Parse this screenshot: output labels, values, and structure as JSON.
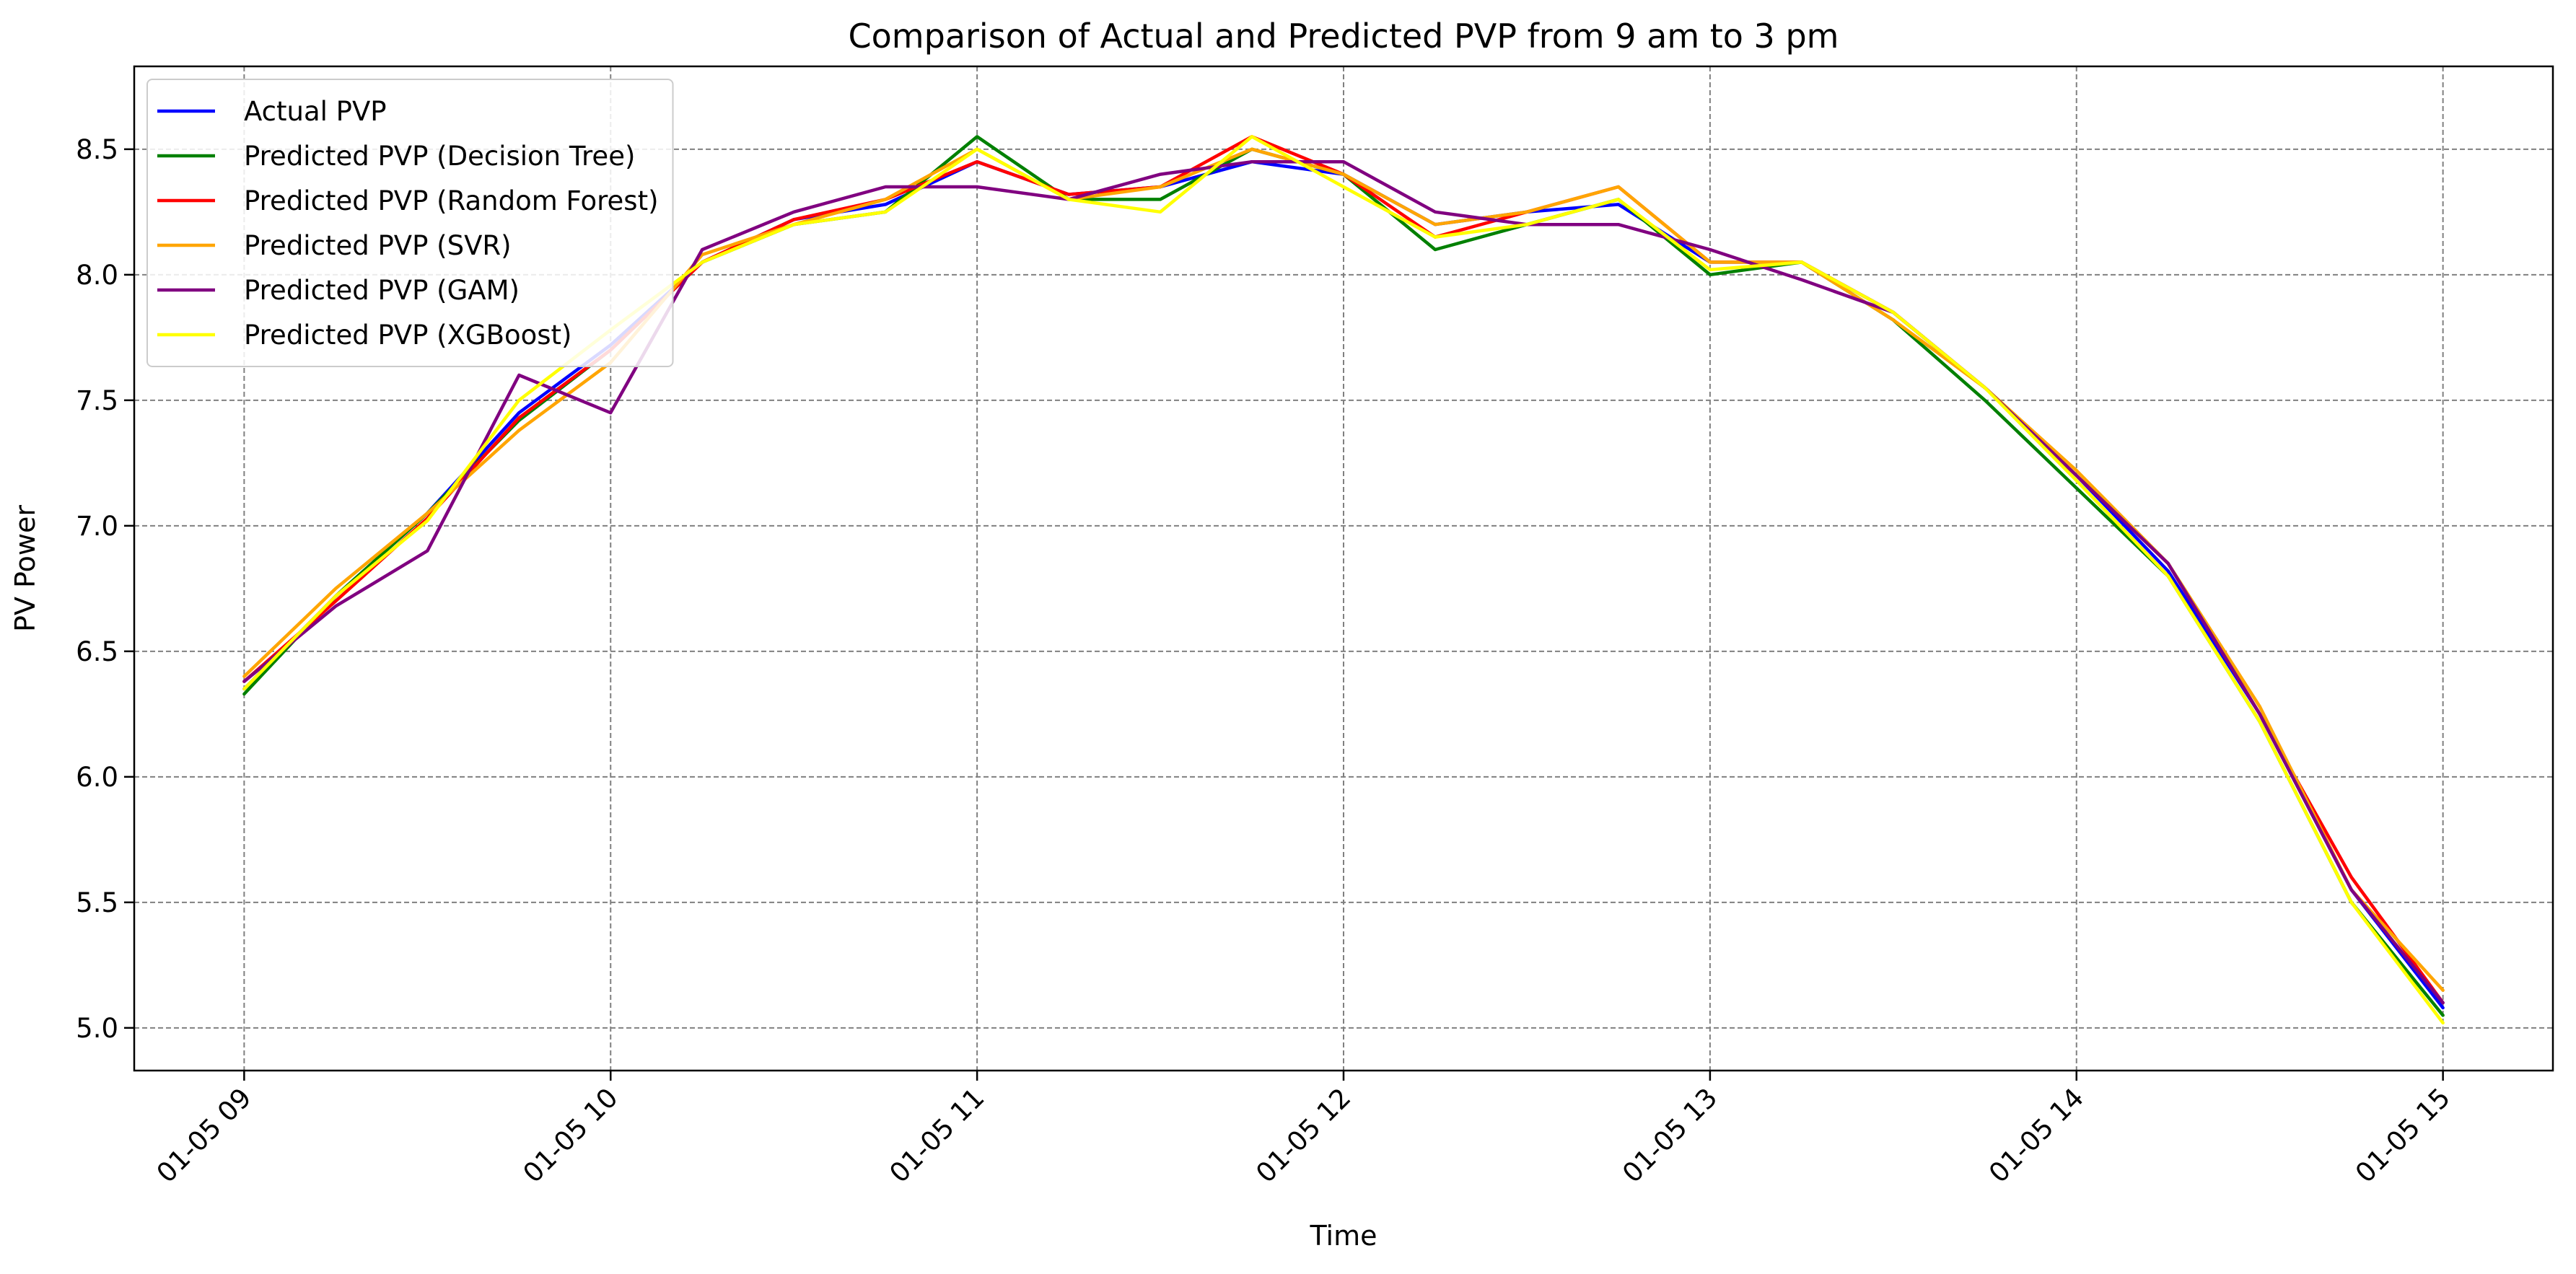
{
  "chart_data": {
    "type": "line",
    "title": "Comparison of Actual and Predicted PVP from 9 am to 3 pm",
    "xlabel": "Time",
    "ylabel": "PV Power",
    "x_ticks": [
      "01-05 09",
      "01-05 10",
      "01-05 11",
      "01-05 12",
      "01-05 13",
      "01-05 14",
      "01-05 15"
    ],
    "y_ticks": [
      "5.0",
      "5.5",
      "6.0",
      "6.5",
      "7.0",
      "7.5",
      "8.0",
      "8.5"
    ],
    "xlim": [
      "01-05 08:42",
      "01-05 15:18"
    ],
    "ylim": [
      4.83,
      8.83
    ],
    "grid": true,
    "legend_position": "upper left",
    "x": [
      "01-05 09:00",
      "01-05 09:15",
      "01-05 09:30",
      "01-05 09:45",
      "01-05 10:00",
      "01-05 10:15",
      "01-05 10:30",
      "01-05 10:45",
      "01-05 11:00",
      "01-05 11:15",
      "01-05 11:30",
      "01-05 11:45",
      "01-05 12:00",
      "01-05 12:15",
      "01-05 12:30",
      "01-05 12:45",
      "01-05 13:00",
      "01-05 13:15",
      "01-05 13:30",
      "01-05 13:45",
      "01-05 14:00",
      "01-05 14:15",
      "01-05 14:30",
      "01-05 14:45",
      "01-05 15:00"
    ],
    "series": [
      {
        "name": "Actual PVP",
        "color": "#0000ff",
        "values": [
          6.35,
          6.72,
          7.05,
          7.45,
          7.72,
          8.05,
          8.22,
          8.28,
          8.45,
          8.32,
          8.35,
          8.45,
          8.4,
          8.2,
          8.25,
          8.28,
          8.05,
          8.05,
          7.85,
          7.55,
          7.2,
          6.82,
          6.25,
          5.55,
          5.08
        ]
      },
      {
        "name": "Predicted PVP (Decision Tree)",
        "color": "#008000",
        "values": [
          6.33,
          6.72,
          7.05,
          7.42,
          7.7,
          8.05,
          8.2,
          8.25,
          8.55,
          8.3,
          8.3,
          8.5,
          8.4,
          8.1,
          8.2,
          8.3,
          8.0,
          8.05,
          7.82,
          7.5,
          7.15,
          6.8,
          6.22,
          5.5,
          5.05
        ]
      },
      {
        "name": "Predicted PVP (Random Forest)",
        "color": "#ff0000",
        "values": [
          6.38,
          6.7,
          7.03,
          7.43,
          7.7,
          8.05,
          8.22,
          8.3,
          8.45,
          8.32,
          8.35,
          8.55,
          8.4,
          8.15,
          8.25,
          8.35,
          8.05,
          8.05,
          7.85,
          7.55,
          7.2,
          6.85,
          6.25,
          5.6,
          5.1
        ]
      },
      {
        "name": "Predicted PVP (SVR)",
        "color": "#ffa500",
        "values": [
          6.4,
          6.75,
          7.05,
          7.38,
          7.65,
          8.08,
          8.2,
          8.3,
          8.5,
          8.3,
          8.35,
          8.5,
          8.4,
          8.2,
          8.25,
          8.35,
          8.05,
          8.05,
          7.82,
          7.55,
          7.22,
          6.85,
          6.28,
          5.55,
          5.15
        ]
      },
      {
        "name": "Predicted PVP (GAM)",
        "color": "#800080",
        "values": [
          6.38,
          6.68,
          6.9,
          7.6,
          7.45,
          8.1,
          8.25,
          8.35,
          8.35,
          8.3,
          8.4,
          8.45,
          8.45,
          8.25,
          8.2,
          8.2,
          8.1,
          7.98,
          7.85,
          7.55,
          7.2,
          6.85,
          6.25,
          5.55,
          5.1
        ]
      },
      {
        "name": "Predicted PVP (XGBoost)",
        "color": "#ffff00",
        "values": [
          6.35,
          6.72,
          7.02,
          7.5,
          7.78,
          8.05,
          8.2,
          8.25,
          8.5,
          8.3,
          8.25,
          8.55,
          8.35,
          8.15,
          8.2,
          8.3,
          8.02,
          8.05,
          7.85,
          7.55,
          7.18,
          6.8,
          6.22,
          5.5,
          5.02
        ]
      }
    ]
  }
}
